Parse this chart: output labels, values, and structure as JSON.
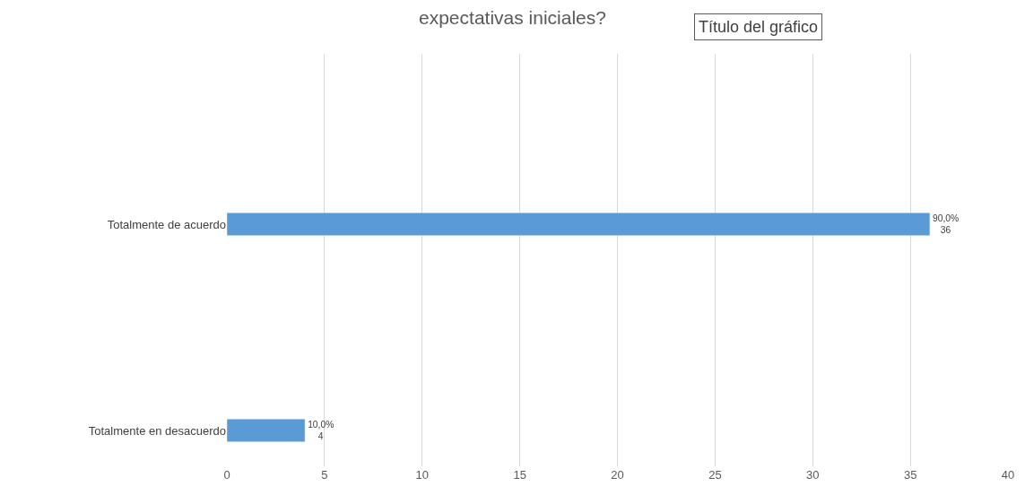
{
  "chart_data": {
    "type": "bar",
    "orientation": "horizontal",
    "title": "expectativas iniciales?",
    "annotations": [
      "Título del gráfico"
    ],
    "categories": [
      "Totalmente de acuerdo",
      "Totalmente en desacuerdo"
    ],
    "values": [
      36,
      4
    ],
    "color": "#5b9bd5",
    "value_labels": [
      "90,0%\n36",
      "10,0%\n4"
    ],
    "xlim": [
      0,
      40
    ],
    "xticks": [
      0,
      5,
      10,
      15,
      20,
      25,
      30,
      35,
      40
    ],
    "grid": "x"
  }
}
